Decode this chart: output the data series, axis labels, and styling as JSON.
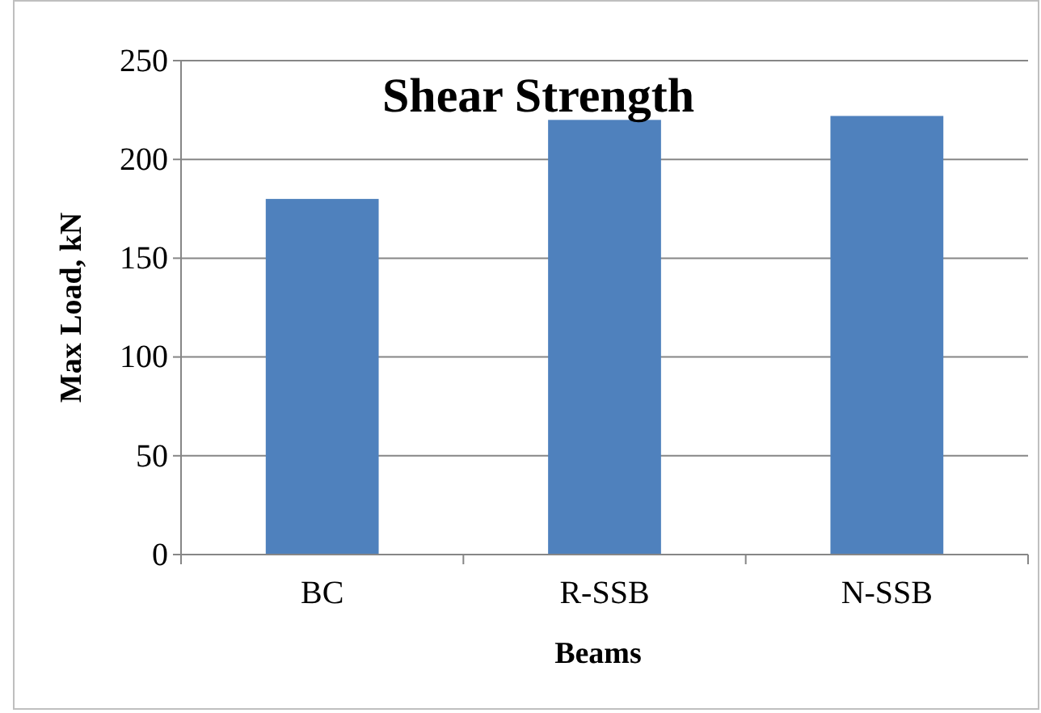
{
  "chart_data": {
    "type": "bar",
    "title": "Shear Strength",
    "xlabel": "Beams",
    "ylabel": "Max Load, kN",
    "categories": [
      "BC",
      "R-SSB",
      "N-SSB"
    ],
    "values": [
      180,
      220,
      222
    ],
    "color": "#4f81bd",
    "ylim": [
      0,
      250
    ],
    "yticks": [
      0,
      50,
      100,
      150,
      200,
      250
    ],
    "grid": "y"
  }
}
